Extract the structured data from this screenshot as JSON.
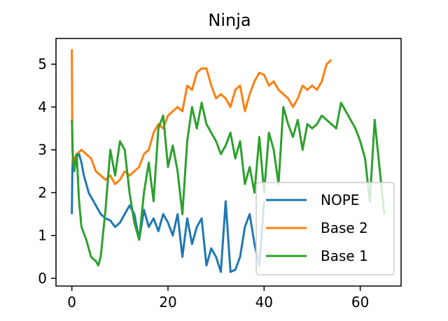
{
  "chart_data": {
    "type": "line",
    "title": "Ninja",
    "xlabel": "",
    "ylabel": "",
    "xlim": [
      -3.3,
      68.5
    ],
    "ylim": [
      -0.18,
      5.6
    ],
    "xticks": [
      0,
      20,
      40,
      60
    ],
    "yticks": [
      0,
      1,
      2,
      3,
      4,
      5
    ],
    "grid": false,
    "legend_position": "lower-right",
    "series": [
      {
        "name": "NOPE",
        "color": "#1f77b4",
        "x": [
          0,
          0.1,
          0.2,
          0.5,
          1,
          1.5,
          2,
          2.5,
          3,
          3.5,
          4,
          5,
          6,
          7,
          8,
          9,
          10,
          11,
          12,
          13,
          14,
          15,
          16,
          17,
          18,
          19,
          20,
          21,
          22,
          23,
          24,
          25,
          26,
          27,
          28,
          29,
          30,
          31,
          32,
          33,
          34,
          35,
          36,
          37,
          38,
          39,
          40
        ],
        "y": [
          1.5,
          2.5,
          2.8,
          2.7,
          2.85,
          2.9,
          2.7,
          2.4,
          2.2,
          2.0,
          1.9,
          1.7,
          1.5,
          1.4,
          1.35,
          1.2,
          1.3,
          1.5,
          1.7,
          1.5,
          0.9,
          1.6,
          1.2,
          1.4,
          1.1,
          1.5,
          1.3,
          1.0,
          1.5,
          0.5,
          1.4,
          0.8,
          1.2,
          1.4,
          0.3,
          0.7,
          0.5,
          0.15,
          1.8,
          0.15,
          0.2,
          0.5,
          1.2,
          1.5,
          0.8,
          0.3,
          1.8
        ]
      },
      {
        "name": "Base 2",
        "color": "#ff7f0e",
        "x": [
          0,
          0.1,
          0.3,
          0.6,
          1,
          2,
          3,
          4,
          5,
          6,
          7,
          8,
          9,
          10,
          11,
          12,
          13,
          14,
          15,
          16,
          17,
          18,
          19,
          20,
          21,
          22,
          23,
          24,
          25,
          26,
          27,
          28,
          29,
          30,
          31,
          32,
          33,
          34,
          35,
          36,
          37,
          38,
          39,
          40,
          41,
          42,
          43,
          44,
          45,
          46,
          47,
          48,
          49,
          50,
          51,
          52,
          53,
          54
        ],
        "y": [
          5.35,
          3.0,
          2.7,
          2.8,
          2.9,
          3.0,
          2.9,
          2.8,
          2.5,
          2.4,
          2.3,
          2.4,
          2.2,
          2.3,
          2.5,
          2.4,
          2.5,
          2.6,
          2.9,
          3.0,
          3.4,
          3.6,
          3.5,
          3.8,
          3.9,
          4.0,
          3.9,
          4.5,
          4.4,
          4.8,
          4.9,
          4.9,
          4.5,
          4.2,
          4.3,
          4.2,
          4.0,
          4.4,
          4.5,
          3.9,
          4.3,
          4.6,
          4.8,
          4.75,
          4.5,
          4.6,
          4.4,
          4.3,
          4.2,
          4.0,
          4.2,
          4.5,
          4.4,
          4.5,
          4.4,
          4.6,
          5.0,
          5.1
        ]
      },
      {
        "name": "Base 1",
        "color": "#2ca02c",
        "x": [
          0,
          0.2,
          0.5,
          1,
          1.5,
          2,
          3,
          4,
          5,
          5.5,
          6,
          7,
          8,
          9,
          10,
          11,
          12,
          13,
          14,
          15,
          16,
          17,
          18,
          19,
          20,
          21,
          22,
          23,
          24,
          25,
          26,
          27,
          28,
          29,
          30,
          31,
          32,
          33,
          34,
          35,
          36,
          37,
          38,
          39,
          40,
          41,
          42,
          43,
          44,
          45,
          46,
          47,
          48,
          49,
          50,
          51,
          52,
          53,
          54,
          55,
          56,
          57,
          58,
          59,
          60,
          61,
          62,
          63,
          64,
          65
        ],
        "y": [
          3.7,
          2.9,
          2.5,
          2.9,
          1.8,
          1.2,
          0.9,
          0.5,
          0.4,
          0.3,
          0.5,
          1.6,
          3.0,
          2.4,
          3.2,
          3.0,
          2.0,
          1.3,
          0.9,
          2.0,
          2.7,
          1.8,
          3.5,
          3.8,
          2.6,
          3.1,
          2.5,
          1.5,
          3.2,
          4.0,
          3.5,
          4.1,
          3.6,
          3.4,
          3.2,
          2.9,
          3.1,
          3.4,
          2.8,
          3.2,
          2.2,
          2.6,
          2.0,
          3.3,
          2.0,
          3.4,
          3.0,
          2.2,
          4.0,
          3.6,
          3.3,
          3.7,
          3.0,
          3.6,
          3.5,
          3.6,
          3.8,
          3.7,
          3.6,
          3.5,
          4.1,
          3.9,
          3.7,
          3.5,
          3.2,
          2.8,
          1.8,
          3.7,
          2.6,
          1.5
        ]
      }
    ]
  }
}
